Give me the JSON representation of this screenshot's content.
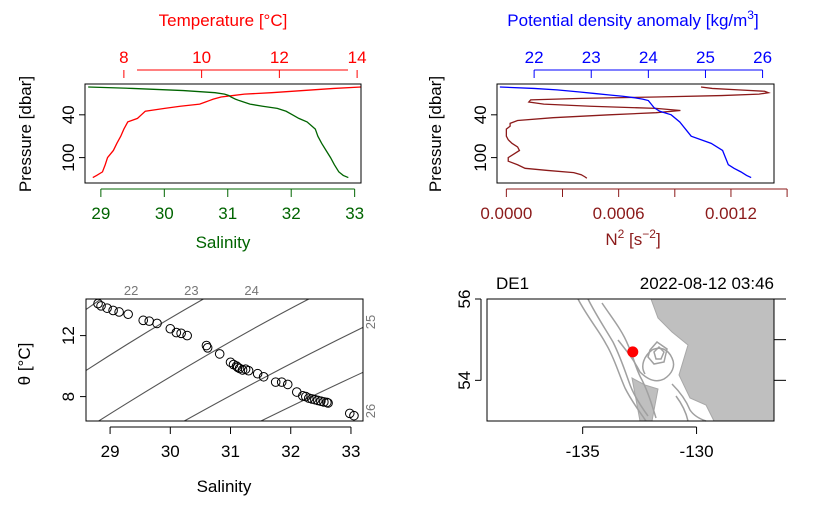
{
  "colors": {
    "temperature": "#ff0000",
    "salinity": "#006400",
    "density": "#0000ff",
    "n2": "#8b1a1a",
    "isopycnal": "#555555",
    "sigma_label": "#777777",
    "land": "#bfbfbf",
    "coast": "#a0a0a0",
    "station": "#ff0000"
  },
  "chart_data": [
    {
      "type": "line",
      "panel": "profile-temperature-salinity",
      "top_axis_label": "Temperature [°C]",
      "bottom_axis_label": "Salinity",
      "y_axis_label": "Pressure [dbar]",
      "temperature_ticks": [
        8,
        10,
        12,
        14
      ],
      "temperature_range": [
        7.0,
        14.1
      ],
      "salinity_ticks": [
        29,
        30,
        31,
        32,
        33
      ],
      "salinity_range": [
        28.75,
        33.1
      ],
      "pressure_ticks": [
        40,
        100
      ],
      "pressure_range": [
        1,
        130
      ],
      "series": [
        {
          "name": "Temperature",
          "y": [
            1,
            3,
            6,
            9,
            11,
            13,
            15,
            18,
            20,
            22,
            25,
            28,
            31,
            35,
            40,
            45,
            50,
            60,
            70,
            80,
            90,
            100,
            110,
            120,
            125,
            128
          ],
          "x": [
            14.1,
            13.4,
            12.6,
            11.8,
            11.1,
            10.8,
            10.5,
            10.3,
            10.2,
            10.1,
            9.95,
            9.45,
            9.05,
            8.55,
            8.45,
            8.35,
            8.1,
            8.0,
            7.92,
            7.82,
            7.73,
            7.58,
            7.52,
            7.45,
            7.3,
            7.2
          ]
        },
        {
          "name": "Salinity",
          "y": [
            1,
            3,
            6,
            9,
            11,
            13,
            15,
            18,
            20,
            22,
            25,
            28,
            31,
            35,
            40,
            45,
            50,
            60,
            70,
            80,
            90,
            100,
            110,
            120,
            125,
            128
          ],
          "x": [
            28.8,
            29.5,
            30.3,
            30.8,
            30.95,
            31.02,
            31.05,
            31.12,
            31.18,
            31.25,
            31.35,
            31.55,
            31.78,
            31.92,
            32.02,
            32.12,
            32.25,
            32.38,
            32.42,
            32.48,
            32.55,
            32.62,
            32.68,
            32.75,
            32.82,
            32.9
          ]
        }
      ]
    },
    {
      "type": "line",
      "panel": "profile-density-n2",
      "top_axis_label": "Potential density anomaly [kg/m",
      "top_axis_label_sup": "3",
      "top_axis_label_end": "]",
      "bottom_axis_label": "N",
      "bottom_axis_label_sup": "2",
      "bottom_axis_label_mid": " [s",
      "bottom_axis_label_sup2": "−2",
      "bottom_axis_label_end": "]",
      "y_axis_label": "Pressure [dbar]",
      "density_ticks": [
        "22",
        "23",
        "24",
        "25",
        "26"
      ],
      "density_tick_values": [
        22,
        23,
        24,
        25,
        26
      ],
      "density_range": [
        21.35,
        26.2
      ],
      "n2_ticks": [
        "0.0000",
        "0.0006",
        "0.0012"
      ],
      "n2_tick_values": [
        0,
        0.0006,
        0.0012
      ],
      "n2_minor_ticks": [
        0.0003,
        0.0009
      ],
      "n2_range": [
        -5e-05,
        0.00143
      ],
      "pressure_ticks": [
        40,
        100
      ],
      "pressure_range": [
        1,
        130
      ],
      "series": [
        {
          "name": "Potential density anomaly",
          "y": [
            1,
            3,
            5,
            8,
            10,
            12,
            14,
            16,
            18,
            20,
            25,
            30,
            35,
            40,
            50,
            60,
            70,
            80,
            90,
            100,
            110,
            115,
            120,
            125,
            128
          ],
          "x": [
            21.4,
            22.0,
            22.4,
            22.8,
            23.05,
            23.3,
            23.55,
            23.75,
            23.9,
            24.0,
            24.05,
            24.1,
            24.2,
            24.4,
            24.55,
            24.65,
            24.75,
            25.1,
            25.3,
            25.35,
            25.4,
            25.5,
            25.62,
            25.72,
            25.8
          ]
        },
        {
          "name": "N2",
          "y": [
            1,
            3,
            5,
            7,
            9,
            11,
            13,
            15,
            17,
            19,
            22,
            25,
            28,
            31,
            34,
            37,
            40,
            44,
            48,
            52,
            56,
            60,
            65,
            70,
            75,
            80,
            85,
            90,
            95,
            100,
            105,
            110,
            115,
            118,
            121,
            124,
            127,
            129
          ],
          "x": [
            0.00104,
            0.0011,
            0.00124,
            0.00138,
            0.0014,
            0.00135,
            0.00115,
            0.0008,
            0.0004,
            0.00013,
            0.00012,
            0.0002,
            0.00045,
            0.0008,
            0.00093,
            0.0008,
            0.00055,
            0.00025,
            6e-05,
            2e-05,
            2e-05,
            0.0,
            0.0,
            0.0,
            1e-05,
            3e-05,
            6e-05,
            7e-05,
            4e-05,
            1e-05,
            1e-05,
            6e-05,
            0.0001,
            0.00022,
            0.00036,
            0.0004,
            0.00042,
            0.00043
          ]
        }
      ]
    },
    {
      "type": "scatter",
      "panel": "ts-diagram",
      "x_label": "Salinity",
      "y_label_symbol": "θ",
      "y_label_unit": " [°C]",
      "x_ticks": [
        29,
        30,
        31,
        32,
        33
      ],
      "x_range": [
        28.6,
        33.2
      ],
      "y_ticks": [
        8,
        12
      ],
      "y_range": [
        6.4,
        14.4
      ],
      "isopycnals": [
        {
          "label": "22",
          "sigma": 22
        },
        {
          "label": "23",
          "sigma": 23
        },
        {
          "label": "24",
          "sigma": 24
        },
        {
          "label": "25",
          "sigma": 25
        },
        {
          "label": "26",
          "sigma": 26
        }
      ],
      "points": [
        [
          28.8,
          14.1
        ],
        [
          28.85,
          13.95
        ],
        [
          28.95,
          13.8
        ],
        [
          29.05,
          13.65
        ],
        [
          29.15,
          13.55
        ],
        [
          29.3,
          13.4
        ],
        [
          29.55,
          13.0
        ],
        [
          29.65,
          12.95
        ],
        [
          29.78,
          12.8
        ],
        [
          30.0,
          12.45
        ],
        [
          30.1,
          12.2
        ],
        [
          30.18,
          12.15
        ],
        [
          30.28,
          12.0
        ],
        [
          30.6,
          11.35
        ],
        [
          30.62,
          11.2
        ],
        [
          30.82,
          10.8
        ],
        [
          31.0,
          10.25
        ],
        [
          31.05,
          10.1
        ],
        [
          31.1,
          10.0
        ],
        [
          31.12,
          9.92
        ],
        [
          31.15,
          9.85
        ],
        [
          31.2,
          9.75
        ],
        [
          31.25,
          9.8
        ],
        [
          31.3,
          9.7
        ],
        [
          31.45,
          9.5
        ],
        [
          31.55,
          9.3
        ],
        [
          31.75,
          8.95
        ],
        [
          31.85,
          8.95
        ],
        [
          31.95,
          8.8
        ],
        [
          32.1,
          8.3
        ],
        [
          32.2,
          8.05
        ],
        [
          32.25,
          8.0
        ],
        [
          32.3,
          7.9
        ],
        [
          32.35,
          7.85
        ],
        [
          32.4,
          7.8
        ],
        [
          32.45,
          7.75
        ],
        [
          32.5,
          7.7
        ],
        [
          32.55,
          7.65
        ],
        [
          32.6,
          7.62
        ],
        [
          32.62,
          7.58
        ],
        [
          32.98,
          6.9
        ],
        [
          33.05,
          6.75
        ]
      ]
    },
    {
      "type": "map",
      "panel": "station-map",
      "station": "DE1",
      "datetime": "2022-08-12 03:46",
      "x_ticks": [
        "-135",
        "-130"
      ],
      "x_tick_values": [
        -135,
        -130
      ],
      "x_range": [
        -139.2,
        -126.6
      ],
      "y_ticks": [
        "54",
        "56"
      ],
      "y_tick_values": [
        54,
        56
      ],
      "y_range": [
        53.0,
        56.0
      ],
      "station_lon": -132.8,
      "station_lat": 54.7
    }
  ]
}
